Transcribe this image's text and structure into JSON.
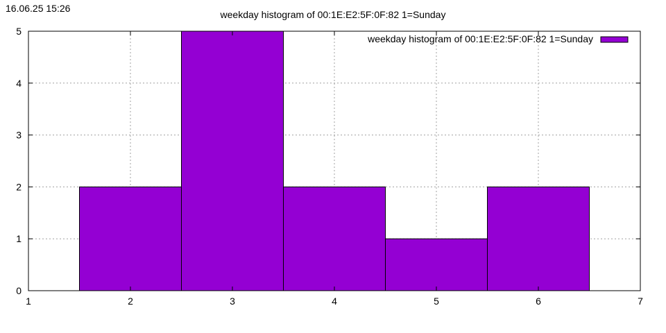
{
  "timestamp": "16.06.25 15:26",
  "chart_data": {
    "type": "bar",
    "title": "weekday histogram of 00:1E:E2:5F:0F:82 1=Sunday",
    "xlabel": "",
    "ylabel": "",
    "xlim": [
      1,
      7
    ],
    "ylim": [
      0,
      5
    ],
    "xticks": [
      1,
      2,
      3,
      4,
      5,
      6,
      7
    ],
    "yticks": [
      0,
      1,
      2,
      3,
      4,
      5
    ],
    "grid": true,
    "legend_position": "top-right",
    "bar_width": 1,
    "colors": {
      "bar": "#9400d3",
      "grid": "#a0a0a0",
      "axis": "#000000"
    },
    "series": [
      {
        "name": "weekday histogram of 00:1E:E2:5F:0F:82 1=Sunday",
        "x": [
          2,
          3,
          4,
          5,
          6
        ],
        "values": [
          2,
          5,
          2,
          1,
          2
        ]
      }
    ]
  }
}
